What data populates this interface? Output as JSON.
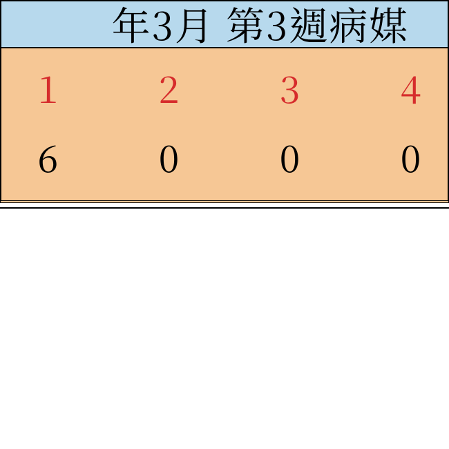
{
  "title": "年3月 第3週病媒",
  "background_color": "#ffffff",
  "title_bar": {
    "background": "#b7d9ed",
    "text_color": "#000000",
    "font_size_pt": 42
  },
  "table": {
    "type": "table",
    "background": "#f6c795",
    "border_color": "#000000",
    "header_color": "#d62c2c",
    "value_color": "#000000",
    "font_size_pt": 40,
    "columns": [
      "1",
      "2",
      "3",
      "4"
    ],
    "rows": [
      [
        "6",
        "0",
        "0",
        "0"
      ]
    ]
  }
}
